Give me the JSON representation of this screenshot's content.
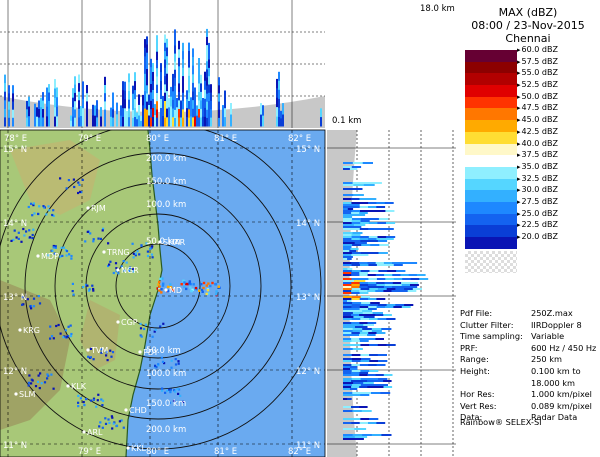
{
  "header": {
    "product": "MAX (dBZ)",
    "datetime": "08:00 / 23-Nov-2015",
    "station": "Chennai"
  },
  "color_scale": [
    {
      "label": "60.0 dBZ",
      "color": "#660033"
    },
    {
      "label": "57.5 dBZ",
      "color": "#8c0000"
    },
    {
      "label": "55.0 dBZ",
      "color": "#b20000"
    },
    {
      "label": "52.5 dBZ",
      "color": "#e00000"
    },
    {
      "label": "50.0 dBZ",
      "color": "#ff3300"
    },
    {
      "label": "47.5 dBZ",
      "color": "#ff7700"
    },
    {
      "label": "45.0 dBZ",
      "color": "#ffaa00"
    },
    {
      "label": "42.5 dBZ",
      "color": "#ffdd33"
    },
    {
      "label": "40.0 dBZ",
      "color": "#fff8c8"
    },
    {
      "label": "37.5 dBZ",
      "color": "#ffffff"
    },
    {
      "label": "35.0 dBZ",
      "color": "#8fefff"
    },
    {
      "label": "32.5 dBZ",
      "color": "#55d6ff"
    },
    {
      "label": "30.0 dBZ",
      "color": "#33b0ff"
    },
    {
      "label": "27.5 dBZ",
      "color": "#1e88ff"
    },
    {
      "label": "25.0 dBZ",
      "color": "#1463f0"
    },
    {
      "label": "22.5 dBZ",
      "color": "#0a3ed6"
    },
    {
      "label": "20.0 dBZ",
      "color": "#0a14b4"
    }
  ],
  "meta": {
    "pdf_file_key": "Pdf File:",
    "pdf_file": "250Z.max",
    "clutter_key": "Clutter Filter:",
    "clutter": "IIRDoppler 8",
    "time_sampling_key": "Time sampling:",
    "time_sampling": "Variable",
    "prf_key": "PRF:",
    "prf": "600 Hz / 450 Hz",
    "range_key": "Range:",
    "range": "250 km",
    "height_key": "Height:",
    "height_1": "0.100 km to",
    "height_2": "18.000 km",
    "hor_res_key": "Hor Res:",
    "hor_res": "1.000 km/pixel",
    "vert_res_key": "Vert Res:",
    "vert_res": "0.089 km/pixel",
    "data_key": "Data:",
    "data": "Radar Data"
  },
  "footer": "Rainbow® SELEX-SI",
  "axes": {
    "top_height": "18.0 km",
    "low_height": "0.1 km",
    "lon_labels": [
      "78° E",
      "79° E",
      "80° E",
      "81° E",
      "82° E"
    ],
    "lat_labels": [
      "15° N",
      "14° N",
      "13° N",
      "12° N",
      "11° N"
    ],
    "range_rings": [
      "50.0 km",
      "100.0 km",
      "150.0 km",
      "200.0 km"
    ]
  },
  "places": [
    "RJM",
    "TRNG",
    "NGR",
    "MDP",
    "SHAR",
    "MD",
    "KRG",
    "TVM",
    "KLK",
    "SLM",
    "CHD",
    "ARL",
    "KKL",
    "CGP",
    "PDY"
  ],
  "colors": {
    "sea": "#6aaaf0",
    "land": "#a8c878",
    "side_panel_bg": "#ffffff",
    "fan_shade": "#c8c8c8"
  }
}
